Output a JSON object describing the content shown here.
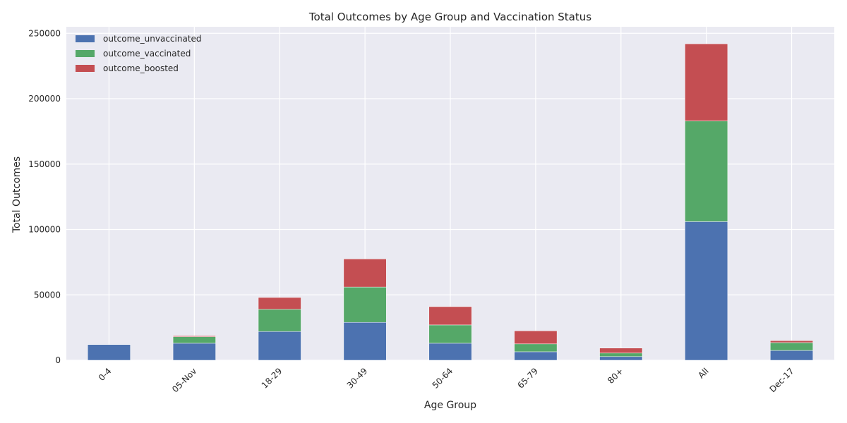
{
  "chart_data": {
    "type": "bar",
    "stacked": true,
    "title": "Total Outcomes by Age Group and Vaccination Status",
    "xlabel": "Age Group",
    "ylabel": "Total Outcomes",
    "categories": [
      "0-4",
      "05-Nov",
      "18-29",
      "30-49",
      "50-64",
      "65-79",
      "80+",
      "All",
      "Dec-17"
    ],
    "series": [
      {
        "name": "outcome_unvaccinated",
        "color": "#4c72b0",
        "values": [
          12000,
          13000,
          22000,
          29000,
          13000,
          6500,
          2800,
          106000,
          7500
        ]
      },
      {
        "name": "outcome_vaccinated",
        "color": "#55a868",
        "values": [
          0,
          5000,
          17000,
          27000,
          14000,
          6000,
          2700,
          77000,
          6000
        ]
      },
      {
        "name": "outcome_boosted",
        "color": "#c44e52",
        "values": [
          0,
          700,
          9000,
          21500,
          14000,
          10000,
          3800,
          59000,
          1500
        ]
      }
    ],
    "ylim": [
      0,
      255000
    ],
    "yticks": [
      0,
      50000,
      100000,
      150000,
      200000,
      250000
    ],
    "grid": true,
    "legend": "top-left"
  }
}
